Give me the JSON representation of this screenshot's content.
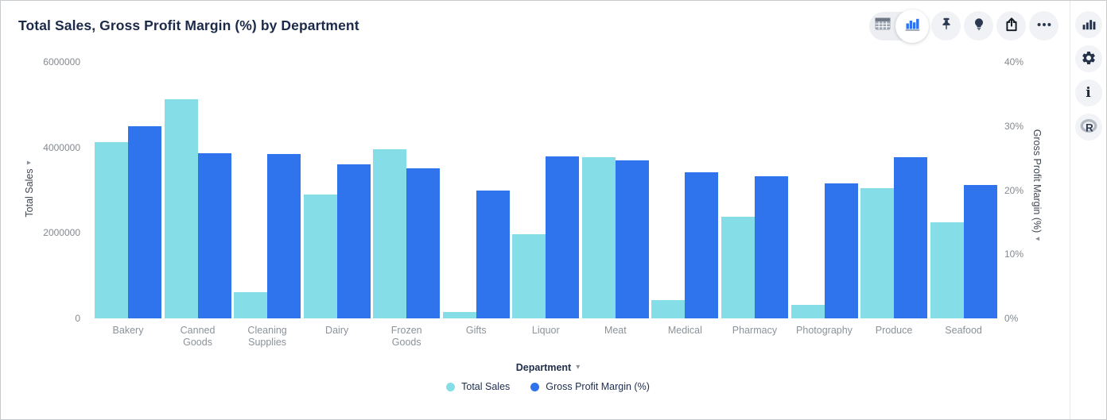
{
  "title": "Total Sales, Gross Profit Margin (%) by Department",
  "toolbar": {
    "view_toggle": {
      "options": [
        "table-view",
        "chart-view"
      ],
      "selected": "chart-view",
      "icons": [
        "table-icon",
        "column-chart-icon"
      ]
    },
    "actions": [
      {
        "name": "pin",
        "icon": "pushpin-icon"
      },
      {
        "name": "explore",
        "icon": "lightbulb-icon"
      },
      {
        "name": "export",
        "icon": "export-icon"
      },
      {
        "name": "more",
        "icon": "ellipsis-icon"
      }
    ]
  },
  "side_strip": {
    "buttons": [
      {
        "name": "charts",
        "icon": "bar-chart-icon"
      },
      {
        "name": "settings",
        "icon": "gear-icon"
      },
      {
        "name": "info",
        "icon": "info-icon"
      },
      {
        "name": "r-language",
        "icon": "r-logo-icon"
      }
    ]
  },
  "colors": {
    "total_sales": "#84DDE7",
    "gross_profit_margin": "#2F74EC",
    "title_text": "#1C2A49",
    "tick_text": "#83898F"
  },
  "chart_data": {
    "type": "bar",
    "title": "Total Sales, Gross Profit Margin (%) by Department",
    "grid": false,
    "legend_position": "bottom",
    "categories": [
      "Bakery",
      "Canned Goods",
      "Cleaning Supplies",
      "Dairy",
      "Frozen Goods",
      "Gifts",
      "Liquor",
      "Meat",
      "Medical",
      "Pharmacy",
      "Photography",
      "Produce",
      "Seafood"
    ],
    "category_display_labels": [
      "Bakery",
      "Canned\nGoods",
      "Cleaning\nSupplies",
      "Dairy",
      "Frozen\nGoods",
      "Gifts",
      "Liquor",
      "Meat",
      "Medical",
      "Pharmacy",
      "Photography",
      "Produce",
      "Seafood"
    ],
    "series": [
      {
        "name": "Total Sales",
        "axis": "left",
        "color": "#84DDE7",
        "values": [
          4120000,
          5130000,
          610000,
          2890000,
          3950000,
          150000,
          1970000,
          3780000,
          430000,
          2380000,
          310000,
          3040000,
          2240000
        ]
      },
      {
        "name": "Gross Profit Margin (%)",
        "axis": "right",
        "color": "#2F74EC",
        "values": [
          30.0,
          25.8,
          25.7,
          24.0,
          23.4,
          20.0,
          25.3,
          24.6,
          22.8,
          22.2,
          21.1,
          25.1,
          20.8
        ]
      }
    ],
    "x_axis": {
      "label": "Department",
      "caret": "▾"
    },
    "left_axis": {
      "label": "Total Sales",
      "caret": "▾",
      "min": 0,
      "max": 6000000,
      "ticks": [
        0,
        2000000,
        4000000,
        6000000
      ],
      "tick_labels": [
        "0",
        "2000000",
        "4000000",
        "6000000"
      ]
    },
    "right_axis": {
      "label": "Gross Profit Margin (%)",
      "caret": "▾",
      "min": 0,
      "max": 40,
      "ticks": [
        0,
        10,
        20,
        30,
        40
      ],
      "tick_labels": [
        "0%",
        "10%",
        "20%",
        "30%",
        "40%"
      ]
    }
  }
}
